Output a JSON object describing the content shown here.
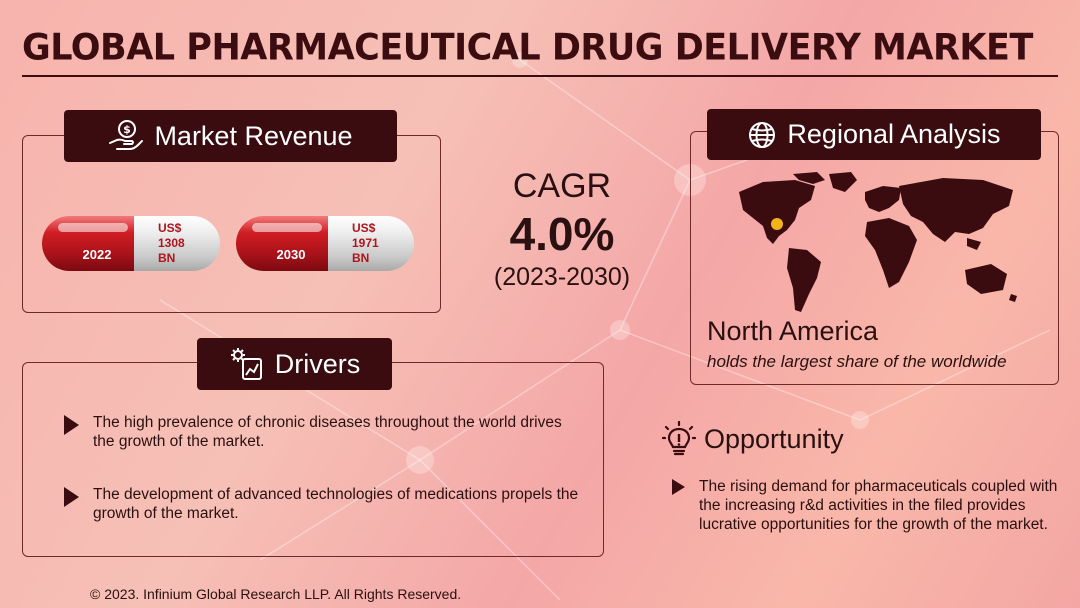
{
  "title": "GLOBAL PHARMACEUTICAL DRUG DELIVERY MARKET",
  "market_revenue": {
    "heading": "Market Revenue",
    "items": [
      {
        "year": "2022",
        "currency": "US$",
        "value": "1308",
        "unit": "BN"
      },
      {
        "year": "2030",
        "currency": "US$",
        "value": "1971",
        "unit": "BN"
      }
    ]
  },
  "cagr": {
    "label": "CAGR",
    "value": "4.0%",
    "period": "(2023-2030)"
  },
  "regional": {
    "heading": "Regional Analysis",
    "region": "North America",
    "note": "holds the largest share of the worldwide"
  },
  "drivers": {
    "heading": "Drivers",
    "items": [
      "The high prevalence of chronic diseases throughout the world drives the growth of the market.",
      "The development of advanced technologies of medications propels the growth of the market."
    ]
  },
  "opportunity": {
    "heading": "Opportunity",
    "items": [
      "The rising demand for pharmaceuticals coupled with the increasing r&d activities in the filed provides lucrative opportunities for the growth of the market."
    ]
  },
  "footer": "© 2023. Infinium Global Research LLP. All Rights Reserved.",
  "colors": {
    "accent": "#3a0c10",
    "capsule_red": "#c2161d",
    "marker": "#f2b418"
  },
  "icons": [
    "money-hand-icon",
    "globe-icon",
    "gears-chart-icon",
    "lightbulb-icon"
  ]
}
